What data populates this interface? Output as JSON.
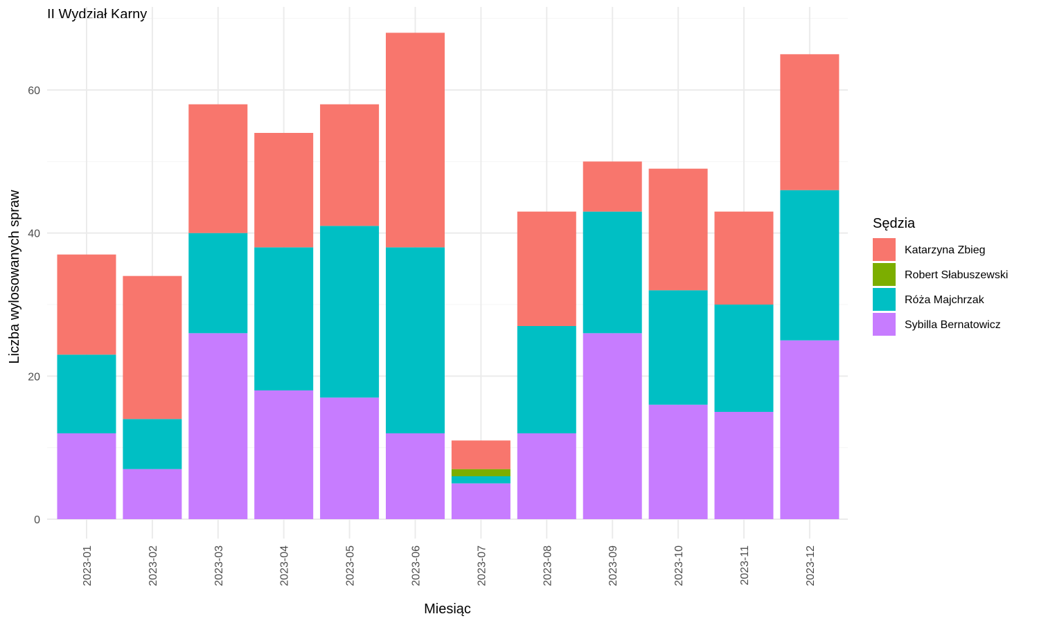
{
  "chart_data": {
    "type": "bar",
    "stacked": true,
    "title": "II Wydział Karny",
    "xlabel": "Miesiąc",
    "ylabel": "Liczba wylosowanych spraw",
    "ylim": [
      0,
      70
    ],
    "yticks": [
      0,
      20,
      40,
      60
    ],
    "grid": true,
    "legend_position": "right",
    "legend_title": "Sędzia",
    "categories": [
      "2023-01",
      "2023-02",
      "2023-03",
      "2023-04",
      "2023-05",
      "2023-06",
      "2023-07",
      "2023-08",
      "2023-09",
      "2023-10",
      "2023-11",
      "2023-12"
    ],
    "series": [
      {
        "name": "Sybilla Bernatowicz",
        "color": "#C77CFF",
        "values": [
          12,
          7,
          26,
          18,
          17,
          12,
          5,
          12,
          26,
          16,
          15,
          25
        ]
      },
      {
        "name": "Róża Majchrzak",
        "color": "#00BFC4",
        "values": [
          11,
          7,
          14,
          20,
          24,
          26,
          1,
          15,
          17,
          16,
          15,
          21
        ]
      },
      {
        "name": "Robert Słabuszewski",
        "color": "#7CAE00",
        "values": [
          0,
          0,
          0,
          0,
          0,
          0,
          1,
          0,
          0,
          0,
          0,
          0
        ]
      },
      {
        "name": "Katarzyna Zbieg",
        "color": "#F8766D",
        "values": [
          14,
          20,
          18,
          16,
          17,
          30,
          4,
          16,
          7,
          17,
          13,
          19
        ]
      }
    ],
    "legend_order": [
      "Katarzyna Zbieg",
      "Robert Słabuszewski",
      "Róża Majchrzak",
      "Sybilla Bernatowicz"
    ]
  }
}
